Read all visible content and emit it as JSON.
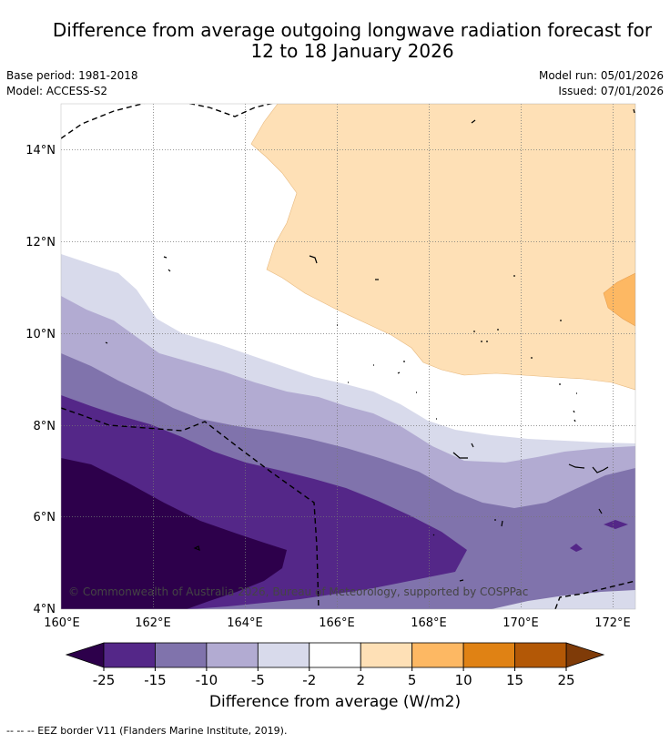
{
  "title": {
    "line1": "Difference from average outgoing longwave radiation forecast for",
    "line2": "12 to 18 January 2026"
  },
  "meta": {
    "base_period": "Base period: 1981-2018",
    "model": "Model: ACCESS-S2",
    "model_run": "Model run: 05/01/2026",
    "issued": "Issued: 07/01/2026"
  },
  "map": {
    "lon_labels": [
      "160°E",
      "162°E",
      "164°E",
      "166°E",
      "168°E",
      "170°E",
      "172°E"
    ],
    "lat_labels": [
      "14°N",
      "12°N",
      "10°N",
      "8°N",
      "6°N",
      "4°N"
    ],
    "copyright": "© Commonwealth of Australia 2026, Bureau of Meteorology, supported by COSPPac"
  },
  "legend": {
    "ticks": [
      "-25",
      "-15",
      "-10",
      "-5",
      "-2",
      "2",
      "5",
      "10",
      "15",
      "25"
    ],
    "title": "Difference from average (W/m2)",
    "colors": {
      "below_min": "#2d004b",
      "bins": [
        "#542788",
        "#8073ac",
        "#b2abd2",
        "#d8daeb",
        "#ffffff",
        "#fee0b6",
        "#fdb863",
        "#e08214",
        "#b35806"
      ],
      "above_max": "#7f3b08"
    }
  },
  "footnote": "--  --  -- EEZ border V11 (Flanders Marine Institute, 2019)."
}
